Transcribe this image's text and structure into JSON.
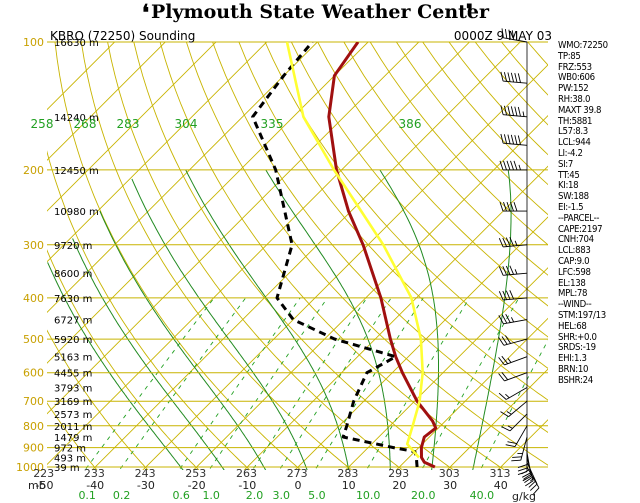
{
  "header": {
    "title": "Plymouth State Weather Center",
    "left_swoosh": "❛",
    "right_swoosh": "❜"
  },
  "chart_data": {
    "type": "line",
    "title": "KBRO (72250) Sounding",
    "time_label": "0000Z  9 MAY 03",
    "y_axis": {
      "scale": "log",
      "units": "mb",
      "range": [
        1000,
        100
      ],
      "ticks": [
        "100",
        "200",
        "300",
        "400",
        "500",
        "600",
        "700",
        "800",
        "900",
        "1000"
      ],
      "tick_values": [
        100,
        200,
        300,
        400,
        500,
        600,
        700,
        800,
        900,
        1000
      ]
    },
    "height_labels": [
      {
        "p": 100,
        "label": "16630 m"
      },
      {
        "p": 150,
        "label": "14240 m"
      },
      {
        "p": 200,
        "label": "12450 m"
      },
      {
        "p": 250,
        "label": "10980 m"
      },
      {
        "p": 300,
        "label": "9720 m"
      },
      {
        "p": 350,
        "label": "8600 m"
      },
      {
        "p": 400,
        "label": "7630 m"
      },
      {
        "p": 450,
        "label": "6727 m"
      },
      {
        "p": 500,
        "label": "5920 m"
      },
      {
        "p": 550,
        "label": "5163 m"
      },
      {
        "p": 600,
        "label": "4455 m"
      },
      {
        "p": 650,
        "label": "3793 m"
      },
      {
        "p": 700,
        "label": "3169 m"
      },
      {
        "p": 750,
        "label": "2573 m"
      },
      {
        "p": 800,
        "label": "2011 m"
      },
      {
        "p": 850,
        "label": "1479 m"
      },
      {
        "p": 900,
        "label": "972 m"
      },
      {
        "p": 950,
        "label": "493 m"
      },
      {
        "p": 1000,
        "label": "39 m"
      }
    ],
    "x_axis": {
      "units": "C",
      "range": [
        -50,
        50
      ],
      "ticks": [
        "-50",
        "-40",
        "-30",
        "-20",
        "-10",
        "0",
        "10",
        "20",
        "30",
        "40"
      ],
      "tick_values": [
        -50,
        -40,
        -30,
        -20,
        -10,
        0,
        10,
        20,
        30,
        40
      ],
      "units_label": "mb"
    },
    "mixing_ratio_labels": {
      "units": "g/kg",
      "labels": [
        "0.1",
        "0.2",
        "0.6",
        "1.0",
        "2.0",
        "3.0",
        "5.0",
        "10.0",
        "20.0",
        "40.0"
      ],
      "values": [
        0.1,
        0.2,
        0.6,
        1.0,
        2.0,
        3.0,
        5.0,
        10.0,
        20.0,
        40.0
      ]
    },
    "theta_labels_bottom": [
      "223",
      "233",
      "243",
      "253",
      "263",
      "273",
      "283",
      "293",
      "303",
      "313"
    ],
    "theta_labels_bottom_values": [
      223,
      233,
      243,
      253,
      263,
      273,
      283,
      293,
      303,
      313
    ],
    "thetae_labels_top": [
      "258",
      "268",
      "283",
      "304",
      "335",
      "386"
    ],
    "thetae_labels_top_values": [
      258,
      268,
      283,
      304,
      335,
      386
    ],
    "series": [
      {
        "name": "temperature",
        "color": "#a01010",
        "points": [
          {
            "p": 1000,
            "t": 27.0
          },
          {
            "p": 975,
            "t": 24.0
          },
          {
            "p": 950,
            "t": 22.5
          },
          {
            "p": 900,
            "t": 20.5
          },
          {
            "p": 850,
            "t": 19.0
          },
          {
            "p": 810,
            "t": 19.5
          },
          {
            "p": 780,
            "t": 17.5
          },
          {
            "p": 700,
            "t": 10.5
          },
          {
            "p": 600,
            "t": 2.0
          },
          {
            "p": 550,
            "t": -2.5
          },
          {
            "p": 500,
            "t": -7.0
          },
          {
            "p": 400,
            "t": -17.0
          },
          {
            "p": 300,
            "t": -31.0
          },
          {
            "p": 250,
            "t": -40.5
          },
          {
            "p": 200,
            "t": -51.0
          },
          {
            "p": 150,
            "t": -63.0
          },
          {
            "p": 120,
            "t": -70.0
          },
          {
            "p": 100,
            "t": -72.0
          }
        ]
      },
      {
        "name": "dewpoint",
        "color": "#000000",
        "dashed": true,
        "points": [
          {
            "p": 1000,
            "t": 23.5
          },
          {
            "p": 975,
            "t": 22.5
          },
          {
            "p": 950,
            "t": 21.5
          },
          {
            "p": 920,
            "t": 20.0
          },
          {
            "p": 900,
            "t": 15.0
          },
          {
            "p": 850,
            "t": 3.0
          },
          {
            "p": 800,
            "t": 1.5
          },
          {
            "p": 700,
            "t": -2.0
          },
          {
            "p": 600,
            "t": -5.0
          },
          {
            "p": 550,
            "t": -2.5
          },
          {
            "p": 500,
            "t": -18.0
          },
          {
            "p": 450,
            "t": -30.0
          },
          {
            "p": 400,
            "t": -37.5
          },
          {
            "p": 300,
            "t": -45.0
          },
          {
            "p": 200,
            "t": -63.0
          },
          {
            "p": 150,
            "t": -78.0
          },
          {
            "p": 120,
            "t": -80.0
          },
          {
            "p": 100,
            "t": -81.0
          }
        ]
      },
      {
        "name": "parcel",
        "color": "#ffff33",
        "points": [
          {
            "p": 950,
            "t": 22.0
          },
          {
            "p": 883,
            "t": 17.0
          },
          {
            "p": 800,
            "t": 14.5
          },
          {
            "p": 700,
            "t": 11.0
          },
          {
            "p": 600,
            "t": 6.0
          },
          {
            "p": 500,
            "t": -1.0
          },
          {
            "p": 400,
            "t": -11.0
          },
          {
            "p": 300,
            "t": -27.0
          },
          {
            "p": 250,
            "t": -38.0
          },
          {
            "p": 200,
            "t": -51.5
          },
          {
            "p": 150,
            "t": -68.0
          },
          {
            "p": 100,
            "t": -86.0
          }
        ]
      }
    ],
    "wind_barbs": [
      {
        "p": 1000,
        "dir": 150,
        "spd": 10
      },
      {
        "p": 975,
        "dir": 155,
        "spd": 25
      },
      {
        "p": 950,
        "dir": 165,
        "spd": 30
      },
      {
        "p": 925,
        "dir": 170,
        "spd": 30
      },
      {
        "p": 900,
        "dir": 180,
        "spd": 30
      },
      {
        "p": 850,
        "dir": 195,
        "spd": 25
      },
      {
        "p": 800,
        "dir": 210,
        "spd": 20
      },
      {
        "p": 750,
        "dir": 225,
        "spd": 15
      },
      {
        "p": 700,
        "dir": 230,
        "spd": 15
      },
      {
        "p": 650,
        "dir": 240,
        "spd": 15
      },
      {
        "p": 600,
        "dir": 250,
        "spd": 20
      },
      {
        "p": 550,
        "dir": 250,
        "spd": 25
      },
      {
        "p": 500,
        "dir": 255,
        "spd": 30
      },
      {
        "p": 450,
        "dir": 260,
        "spd": 35
      },
      {
        "p": 400,
        "dir": 265,
        "spd": 40
      },
      {
        "p": 350,
        "dir": 265,
        "spd": 45
      },
      {
        "p": 300,
        "dir": 265,
        "spd": 45
      },
      {
        "p": 250,
        "dir": 270,
        "spd": 50
      },
      {
        "p": 200,
        "dir": 270,
        "spd": 55
      },
      {
        "p": 175,
        "dir": 275,
        "spd": 60
      },
      {
        "p": 150,
        "dir": 275,
        "spd": 65
      },
      {
        "p": 125,
        "dir": 275,
        "spd": 60
      },
      {
        "p": 100,
        "dir": 280,
        "spd": 40
      }
    ],
    "grid": true,
    "legend": "none"
  },
  "stats": [
    "WMO:72250",
    "TP:85",
    "FRZ:553",
    "WB0:606",
    "PW:152",
    "RH:38.0",
    "MAXT 39.8",
    "TH:5881",
    "L57:8.3",
    "LCL:944",
    "LI:-4.2",
    "SI:7",
    "TT:45",
    "KI:18",
    "SW:188",
    "EI:-1.5",
    "--PARCEL--",
    "CAPE:2197",
    "CNH:704",
    "LCL:883",
    "CAP:9.0",
    "LFC:598",
    "EL:138",
    "MPL:78",
    "--WIND--",
    "STM:197/13",
    "HEL:68",
    "SHR:+0.0",
    "SRDS:-19",
    "EHI:1.3",
    "BRN:10",
    "BSHR:24"
  ],
  "colors": {
    "isobar": "#c8b400",
    "isotherm": "#c8b400",
    "dry_adiabat": "#c8b400",
    "moist_adiabat": "#228b22",
    "mixing_ratio": "#22a022",
    "temperature": "#a01010",
    "dewpoint": "#000000",
    "parcel": "#ffff33",
    "pressure_labels": "#c8a000",
    "thetae_labels": "#22a022",
    "axis_labels": "#222222"
  }
}
